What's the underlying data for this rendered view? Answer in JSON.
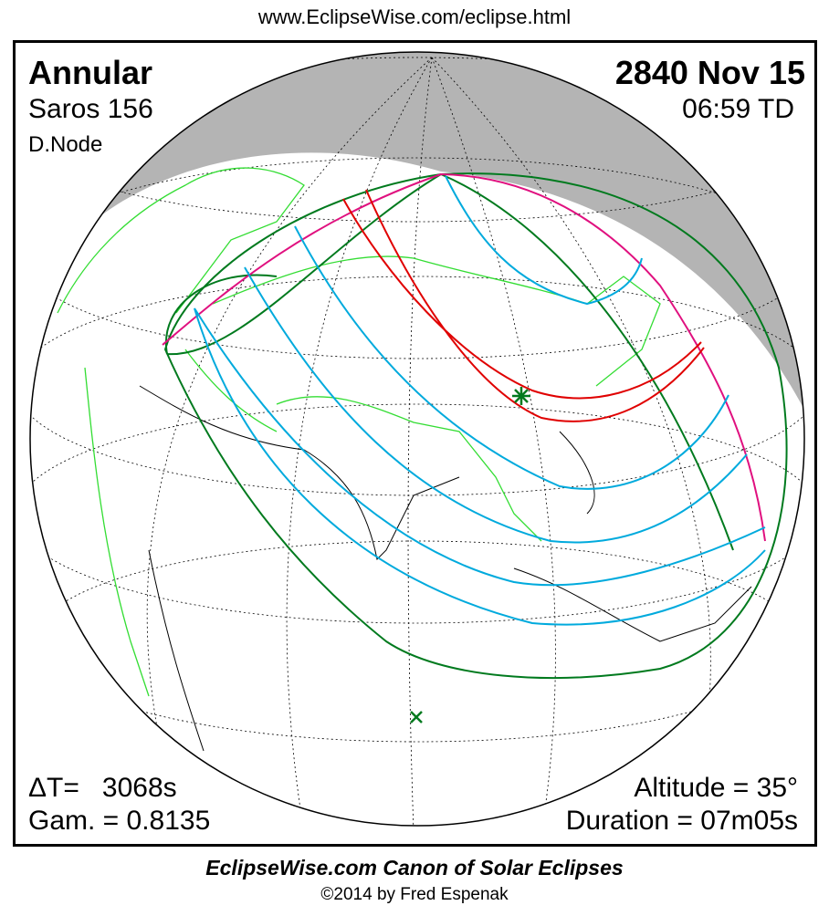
{
  "header": {
    "url": "www.EclipseWise.com/eclipse.html"
  },
  "eclipse": {
    "type": "Annular",
    "saros": "Saros 156",
    "node": "D.Node",
    "date": "2840 Nov 15",
    "time": "06:59 TD",
    "delta_t": "ΔT=   3068s",
    "gamma": "Gam. = 0.8135",
    "altitude": "Altitude = 35°",
    "duration": "Duration = 07m05s"
  },
  "footer": {
    "title": "EclipseWise.com Canon of Solar Eclipses",
    "copyright": "©2014 by Fred Espenak"
  },
  "colors": {
    "central_path": "#e00000",
    "partial_limits": "#00aadd",
    "penumbra_edge": "#e0107f",
    "rise_set_curves": "#007a1e",
    "coastlines_borders": "#33dd33",
    "night": "#b4b4b4"
  },
  "markers": {
    "greatest_eclipse": "star-icon",
    "subsolar_point": "x-icon"
  }
}
